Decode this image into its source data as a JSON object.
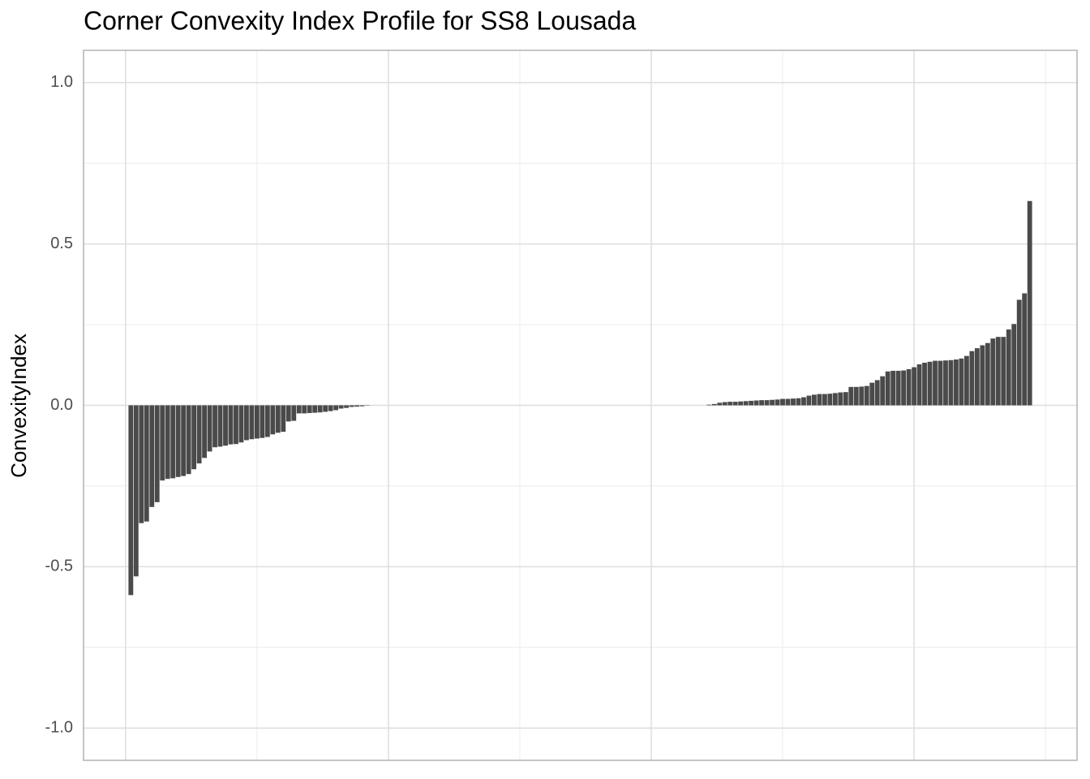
{
  "chart_data": {
    "type": "bar",
    "title": "Corner Convexity Index Profile for SS8 Lousada",
    "y_label": "ConvexityIndex",
    "color": "#4a4a4a",
    "grid": true,
    "xlim": [
      -8,
      181
    ],
    "xticks": [
      0,
      50,
      100,
      150
    ],
    "xminor": [
      25,
      75,
      125,
      175
    ],
    "ylim": [
      -1.1,
      1.1
    ],
    "yticks": [
      {
        "value": -1,
        "label": "-1.0"
      },
      -0.5,
      {
        "value": 0,
        "label": "0.0"
      },
      0.5,
      {
        "value": 1,
        "label": "1.0"
      }
    ],
    "yminor": [
      -0.75,
      -0.25,
      0.25,
      0.75
    ],
    "x": [
      1,
      2,
      3,
      4,
      5,
      6,
      7,
      8,
      9,
      10,
      11,
      12,
      13,
      14,
      15,
      16,
      17,
      18,
      19,
      20,
      21,
      22,
      23,
      24,
      25,
      26,
      27,
      28,
      29,
      30,
      31,
      32,
      33,
      34,
      35,
      36,
      37,
      38,
      39,
      40,
      41,
      42,
      43,
      44,
      45,
      46,
      47,
      48,
      49,
      50,
      51,
      52,
      53,
      54,
      55,
      56,
      57,
      58,
      59,
      60,
      61,
      62,
      63,
      64,
      65,
      66,
      67,
      68,
      69,
      70,
      71,
      72,
      73,
      74,
      75,
      76,
      77,
      78,
      79,
      80,
      81,
      82,
      83,
      84,
      85,
      86,
      87,
      88,
      89,
      90,
      91,
      92,
      93,
      94,
      95,
      96,
      97,
      98,
      99,
      100,
      101,
      102,
      103,
      104,
      105,
      106,
      107,
      108,
      109,
      110,
      111,
      112,
      113,
      114,
      115,
      116,
      117,
      118,
      119,
      120,
      121,
      122,
      123,
      124,
      125,
      126,
      127,
      128,
      129,
      130,
      131,
      132,
      133,
      134,
      135,
      136,
      137,
      138,
      139,
      140,
      141,
      142,
      143,
      144,
      145,
      146,
      147,
      148,
      149,
      150,
      151,
      152,
      153,
      154,
      155,
      156,
      157,
      158,
      159,
      160,
      161,
      162,
      163,
      164,
      165,
      166,
      167,
      168,
      169,
      170,
      171,
      172
    ],
    "values": [
      -0.588,
      -0.53,
      -0.365,
      -0.36,
      -0.315,
      -0.3,
      -0.233,
      -0.228,
      -0.226,
      -0.222,
      -0.219,
      -0.213,
      -0.198,
      -0.18,
      -0.163,
      -0.143,
      -0.13,
      -0.128,
      -0.125,
      -0.121,
      -0.12,
      -0.115,
      -0.108,
      -0.105,
      -0.103,
      -0.101,
      -0.098,
      -0.09,
      -0.085,
      -0.082,
      -0.05,
      -0.048,
      -0.025,
      -0.025,
      -0.024,
      -0.023,
      -0.022,
      -0.02,
      -0.018,
      -0.015,
      -0.01,
      -0.008,
      -0.005,
      -0.004,
      -0.003,
      -0.001,
      0,
      0,
      0,
      0,
      0,
      0,
      0,
      0,
      0,
      0,
      0,
      0,
      0,
      0,
      0,
      0,
      0,
      0,
      0,
      0,
      0,
      0,
      0,
      0,
      0,
      0,
      0,
      0,
      0,
      0,
      0,
      0,
      0,
      0,
      0,
      0,
      0,
      0,
      0,
      0,
      0,
      0,
      0,
      0,
      0,
      0,
      0,
      0,
      0,
      0,
      0,
      0,
      0,
      0,
      0,
      0,
      0,
      0,
      0,
      0,
      0,
      0,
      0,
      0,
      0.002,
      0.004,
      0.008,
      0.01,
      0.011,
      0.011,
      0.012,
      0.013,
      0.014,
      0.015,
      0.016,
      0.016,
      0.017,
      0.018,
      0.02,
      0.02,
      0.021,
      0.022,
      0.025,
      0.03,
      0.033,
      0.035,
      0.035,
      0.036,
      0.038,
      0.04,
      0.041,
      0.057,
      0.057,
      0.058,
      0.06,
      0.07,
      0.078,
      0.09,
      0.105,
      0.107,
      0.107,
      0.108,
      0.112,
      0.118,
      0.127,
      0.132,
      0.135,
      0.138,
      0.138,
      0.139,
      0.14,
      0.142,
      0.145,
      0.153,
      0.168,
      0.177,
      0.186,
      0.193,
      0.207,
      0.212,
      0.212,
      0.235,
      0.252,
      0.327,
      0.347,
      0.633
    ]
  }
}
